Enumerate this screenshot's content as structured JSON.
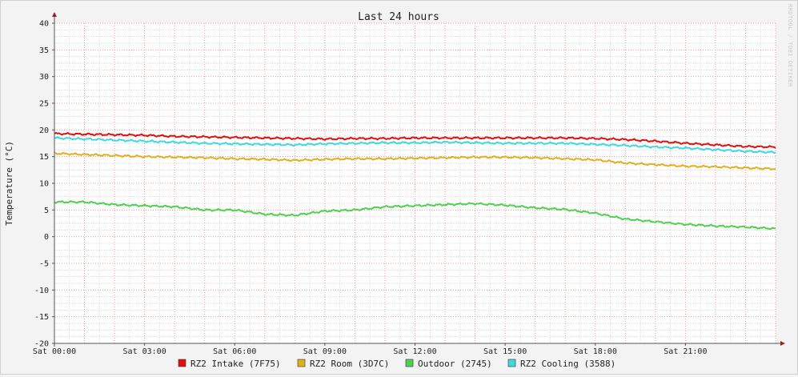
{
  "chart_data": {
    "type": "line",
    "title": "Last 24 hours",
    "xlabel": "",
    "ylabel": "Temperature (°C)",
    "watermark": "RRDTOOL / TOBI OETIKER",
    "ylim": [
      -20,
      40
    ],
    "y_ticks": [
      -20,
      -15,
      -10,
      -5,
      0,
      5,
      10,
      15,
      20,
      25,
      30,
      35,
      40
    ],
    "x_ticks": [
      {
        "h": 0,
        "label": "Sat 00:00"
      },
      {
        "h": 3,
        "label": "Sat 03:00"
      },
      {
        "h": 6,
        "label": "Sat 06:00"
      },
      {
        "h": 9,
        "label": "Sat 09:00"
      },
      {
        "h": 12,
        "label": "Sat 12:00"
      },
      {
        "h": 15,
        "label": "Sat 15:00"
      },
      {
        "h": 18,
        "label": "Sat 18:00"
      },
      {
        "h": 21,
        "label": "Sat 21:00"
      }
    ],
    "grid": true,
    "legend_position": "bottom",
    "x_hours": [
      0,
      1,
      2,
      3,
      4,
      5,
      6,
      7,
      8,
      9,
      10,
      11,
      12,
      13,
      14,
      15,
      16,
      17,
      18,
      19,
      20,
      21,
      22,
      23,
      24
    ],
    "series": [
      {
        "name": "RZ2 Intake (7F75)",
        "color": "#e01010",
        "values": [
          19.3,
          19.2,
          19.1,
          19.0,
          18.8,
          18.7,
          18.6,
          18.5,
          18.4,
          18.3,
          18.4,
          18.4,
          18.5,
          18.5,
          18.5,
          18.5,
          18.5,
          18.5,
          18.4,
          18.2,
          17.9,
          17.5,
          17.2,
          16.9,
          16.8
        ]
      },
      {
        "name": "RZ2 Room (3D7C)",
        "color": "#e0b020",
        "values": [
          15.6,
          15.4,
          15.2,
          15.0,
          14.9,
          14.8,
          14.6,
          14.5,
          14.3,
          14.5,
          14.6,
          14.6,
          14.7,
          14.8,
          14.9,
          14.9,
          14.8,
          14.6,
          14.4,
          13.8,
          13.5,
          13.2,
          13.1,
          12.9,
          12.7
        ]
      },
      {
        "name": "Outdoor (2745)",
        "color": "#50d050",
        "values": [
          6.5,
          6.5,
          6.0,
          5.8,
          5.6,
          5.0,
          5.0,
          4.2,
          4.0,
          4.8,
          5.0,
          5.6,
          5.8,
          6.0,
          6.2,
          5.9,
          5.4,
          5.1,
          4.4,
          3.3,
          2.8,
          2.3,
          2.0,
          1.8,
          1.5
        ]
      },
      {
        "name": "RZ2 Cooling (3588)",
        "color": "#40d8e0",
        "values": [
          18.5,
          18.3,
          18.1,
          17.9,
          17.7,
          17.5,
          17.4,
          17.3,
          17.2,
          17.4,
          17.5,
          17.6,
          17.6,
          17.7,
          17.6,
          17.5,
          17.5,
          17.5,
          17.3,
          17.1,
          16.8,
          16.6,
          16.3,
          16.0,
          15.8
        ]
      }
    ]
  }
}
